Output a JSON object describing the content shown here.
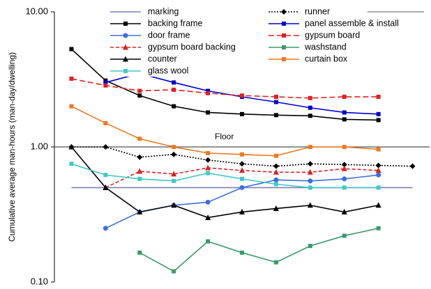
{
  "chart_data": {
    "type": "line",
    "ylabel": "Cumulative average man-hours (man-day/dwelling)",
    "yscale": "log",
    "ylim": [
      0.1,
      10
    ],
    "yticks": [
      {
        "value": 10,
        "label": "10.00"
      },
      {
        "value": 1,
        "label": "1.00"
      },
      {
        "value": 0.1,
        "label": "0.10"
      }
    ],
    "x": [
      1,
      2,
      3,
      4,
      5,
      6,
      7,
      8,
      9,
      10,
      11
    ],
    "xlim": [
      0.5,
      11.5
    ],
    "annotation": {
      "text": "Floor",
      "y": 1.0
    },
    "legend": {
      "placement": "top"
    },
    "series": [
      {
        "name": "marking",
        "color": "#7b7fb6",
        "dash": "",
        "marker": "none",
        "values": [
          0.5,
          0.5,
          0.5,
          0.5,
          0.5,
          0.5,
          0.5,
          0.5,
          0.5,
          0.5,
          0.5
        ]
      },
      {
        "name": "runner",
        "color": "#000000",
        "dash": "2 2",
        "marker": "diamond",
        "values": [
          1.0,
          1.0,
          0.84,
          0.88,
          0.8,
          0.75,
          0.72,
          0.75,
          0.74,
          0.73,
          0.72
        ]
      },
      {
        "name": "backing frame",
        "color": "#000000",
        "dash": "",
        "marker": "square",
        "values": [
          5.3,
          3.1,
          2.4,
          2.0,
          1.8,
          1.75,
          1.72,
          1.7,
          1.6,
          1.58,
          null
        ]
      },
      {
        "name": "panel assemble & install",
        "color": "#0000cc",
        "dash": "",
        "marker": "square",
        "values": [
          null,
          3.0,
          3.5,
          3.0,
          2.6,
          2.35,
          2.15,
          1.95,
          1.8,
          1.75,
          null
        ]
      },
      {
        "name": "door frame",
        "color": "#3b6fe0",
        "dash": "",
        "marker": "circle",
        "values": [
          null,
          0.25,
          0.33,
          0.37,
          0.39,
          0.5,
          0.57,
          0.56,
          0.58,
          0.62,
          null
        ]
      },
      {
        "name": "gypsum board",
        "color": "#e02020",
        "dash": "8 4",
        "marker": "square",
        "values": [
          3.2,
          2.85,
          2.6,
          2.65,
          2.5,
          2.4,
          2.35,
          2.3,
          2.35,
          2.35,
          null
        ]
      },
      {
        "name": "gypsum board backing",
        "color": "#e02020",
        "dash": "5 3",
        "marker": "triangle",
        "values": [
          null,
          0.5,
          0.66,
          0.63,
          0.7,
          0.67,
          0.65,
          0.65,
          0.69,
          0.67,
          null
        ]
      },
      {
        "name": "washstand",
        "color": "#3a9a6a",
        "dash": "",
        "marker": "square",
        "values": [
          null,
          null,
          0.165,
          0.12,
          0.2,
          0.165,
          0.14,
          0.185,
          0.22,
          0.25,
          null
        ]
      },
      {
        "name": "counter",
        "color": "#000000",
        "dash": "",
        "marker": "triangle",
        "values": [
          1.0,
          0.5,
          0.33,
          0.37,
          0.3,
          0.33,
          0.35,
          0.37,
          0.33,
          0.37,
          null
        ]
      },
      {
        "name": "curtain box",
        "color": "#f07820",
        "dash": "",
        "marker": "square",
        "values": [
          2.0,
          1.5,
          1.15,
          1.0,
          0.9,
          0.88,
          0.86,
          1.0,
          1.0,
          0.96,
          null
        ]
      },
      {
        "name": "glass wool",
        "color": "#40c8c8",
        "dash": "",
        "marker": "square",
        "values": [
          0.75,
          0.62,
          0.58,
          0.56,
          0.64,
          0.58,
          0.53,
          0.5,
          0.5,
          0.5,
          null
        ]
      }
    ]
  }
}
